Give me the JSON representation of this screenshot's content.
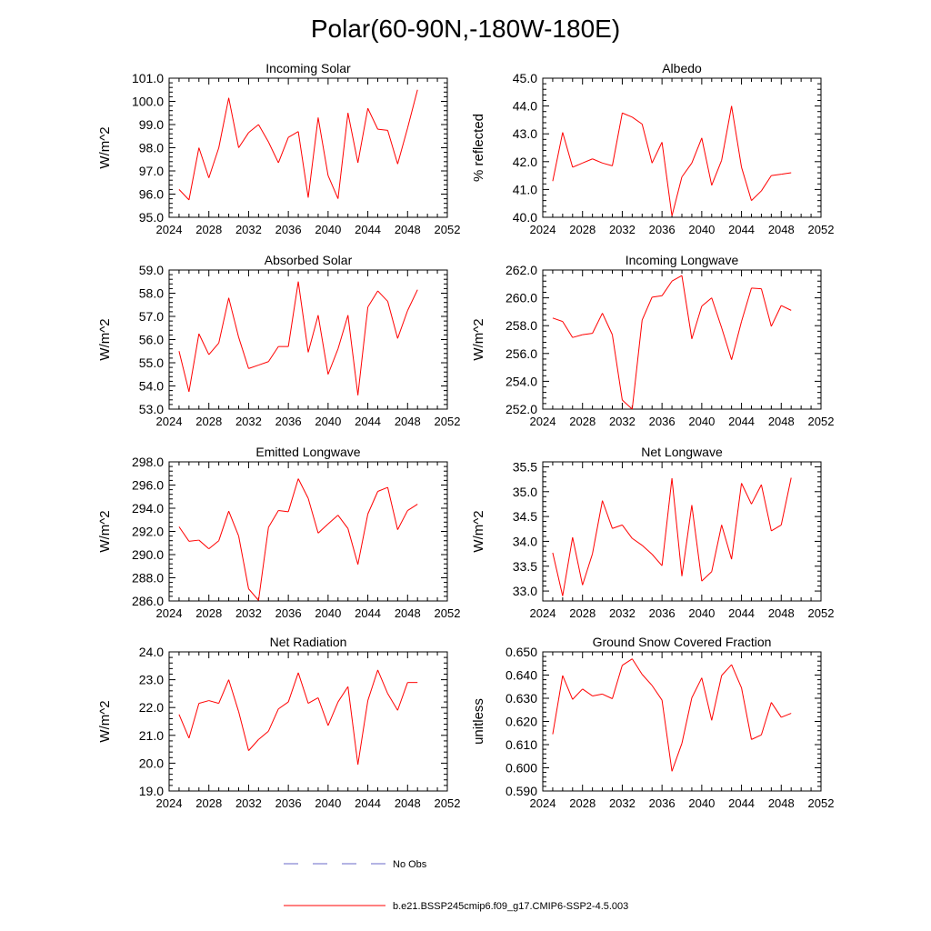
{
  "figure": {
    "title": "Polar(60-90N,-180W-180E)"
  },
  "legend": {
    "obs_label": "No Obs",
    "obs_color": "#6a6ac8",
    "model_label": "b.e21.BSSP245cmip6.f09_g17.CMIP6-SSP2-4.5.003",
    "model_color": "#ff0000"
  },
  "x_axis": {
    "range": [
      2024,
      2052
    ],
    "ticks": [
      "2024",
      "2028",
      "2032",
      "2036",
      "2040",
      "2044",
      "2048",
      "2052"
    ]
  },
  "chart_data": [
    {
      "type": "line",
      "title": "Incoming Solar",
      "xlabel": "",
      "ylabel": "W/m^2",
      "ylim": [
        95.0,
        101.0
      ],
      "yticks": [
        "95.0",
        "96.0",
        "97.0",
        "98.0",
        "99.0",
        "100.0",
        "101.0"
      ],
      "x": [
        2025,
        2026,
        2027,
        2028,
        2029,
        2030,
        2031,
        2032,
        2033,
        2034,
        2035,
        2036,
        2037,
        2038,
        2039,
        2040,
        2041,
        2042,
        2043,
        2044,
        2045,
        2046,
        2047,
        2048,
        2049
      ],
      "series": [
        {
          "name": "b.e21.BSSP245cmip6.f09_g17.CMIP6-SSP2-4.5.003",
          "values": [
            96.2,
            95.75,
            98.0,
            96.7,
            98.0,
            100.15,
            98.0,
            98.65,
            99.0,
            98.25,
            97.35,
            98.45,
            98.7,
            95.85,
            99.3,
            96.8,
            95.8,
            99.5,
            97.35,
            99.7,
            98.8,
            98.75,
            97.3,
            98.85,
            100.5
          ]
        }
      ]
    },
    {
      "type": "line",
      "title": "Albedo",
      "xlabel": "",
      "ylabel": "% reflected",
      "ylim": [
        40.0,
        45.0
      ],
      "yticks": [
        "40.0",
        "41.0",
        "42.0",
        "43.0",
        "44.0",
        "45.0"
      ],
      "x": [
        2025,
        2026,
        2027,
        2028,
        2029,
        2030,
        2031,
        2032,
        2033,
        2034,
        2035,
        2036,
        2037,
        2038,
        2039,
        2040,
        2041,
        2042,
        2043,
        2044,
        2045,
        2046,
        2047,
        2048,
        2049
      ],
      "series": [
        {
          "name": "b.e21.BSSP245cmip6.f09_g17.CMIP6-SSP2-4.5.003",
          "values": [
            41.3,
            43.05,
            41.8,
            41.95,
            42.1,
            41.95,
            41.85,
            43.75,
            43.6,
            43.35,
            41.95,
            42.7,
            40.05,
            41.45,
            41.95,
            42.85,
            41.15,
            42.05,
            44.0,
            41.8,
            40.6,
            40.95,
            41.5,
            41.55,
            41.6
          ]
        }
      ]
    },
    {
      "type": "line",
      "title": "Absorbed Solar",
      "xlabel": "",
      "ylabel": "W/m^2",
      "ylim": [
        53.0,
        59.0
      ],
      "yticks": [
        "53.0",
        "54.0",
        "55.0",
        "56.0",
        "57.0",
        "58.0",
        "59.0"
      ],
      "x": [
        2025,
        2026,
        2027,
        2028,
        2029,
        2030,
        2031,
        2032,
        2033,
        2034,
        2035,
        2036,
        2037,
        2038,
        2039,
        2040,
        2041,
        2042,
        2043,
        2044,
        2045,
        2046,
        2047,
        2048,
        2049
      ],
      "series": [
        {
          "name": "b.e21.BSSP245cmip6.f09_g17.CMIP6-SSP2-4.5.003",
          "values": [
            55.5,
            53.75,
            56.25,
            55.35,
            55.85,
            57.8,
            56.1,
            54.75,
            54.9,
            55.05,
            55.7,
            55.7,
            58.5,
            55.45,
            57.05,
            54.5,
            55.6,
            57.05,
            53.6,
            57.4,
            58.1,
            57.65,
            56.05,
            57.25,
            58.15
          ]
        }
      ]
    },
    {
      "type": "line",
      "title": "Incoming Longwave",
      "xlabel": "",
      "ylabel": "W/m^2",
      "ylim": [
        252.0,
        262.0
      ],
      "yticks": [
        "252.0",
        "254.0",
        "256.0",
        "258.0",
        "260.0",
        "262.0"
      ],
      "x": [
        2025,
        2026,
        2027,
        2028,
        2029,
        2030,
        2031,
        2032,
        2033,
        2034,
        2035,
        2036,
        2037,
        2038,
        2039,
        2040,
        2041,
        2042,
        2043,
        2044,
        2045,
        2046,
        2047,
        2048,
        2049
      ],
      "series": [
        {
          "name": "b.e21.BSSP245cmip6.f09_g17.CMIP6-SSP2-4.5.003",
          "values": [
            258.55,
            258.3,
            257.15,
            257.35,
            257.45,
            258.9,
            257.35,
            252.65,
            252.0,
            258.4,
            260.05,
            260.15,
            261.2,
            261.6,
            257.05,
            259.4,
            260.0,
            257.85,
            255.55,
            258.3,
            260.7,
            260.65,
            257.95,
            259.45,
            259.1
          ]
        }
      ]
    },
    {
      "type": "line",
      "title": "Emitted Longwave",
      "xlabel": "",
      "ylabel": "W/m^2",
      "ylim": [
        286.0,
        298.0
      ],
      "yticks": [
        "286.0",
        "288.0",
        "290.0",
        "292.0",
        "294.0",
        "296.0",
        "298.0"
      ],
      "x": [
        2025,
        2026,
        2027,
        2028,
        2029,
        2030,
        2031,
        2032,
        2033,
        2034,
        2035,
        2036,
        2037,
        2038,
        2039,
        2040,
        2041,
        2042,
        2043,
        2044,
        2045,
        2046,
        2047,
        2048,
        2049
      ],
      "series": [
        {
          "name": "b.e21.BSSP245cmip6.f09_g17.CMIP6-SSP2-4.5.003",
          "values": [
            292.4,
            291.15,
            291.25,
            290.5,
            291.2,
            293.75,
            291.6,
            287.05,
            286.05,
            292.35,
            293.8,
            293.7,
            296.55,
            294.85,
            291.85,
            292.65,
            293.4,
            292.25,
            289.15,
            293.5,
            295.45,
            295.8,
            292.15,
            293.8,
            294.35
          ]
        }
      ]
    },
    {
      "type": "line",
      "title": "Net Longwave",
      "xlabel": "",
      "ylabel": "W/m^2",
      "ylim": [
        32.8,
        35.6
      ],
      "yticks": [
        "33.0",
        "33.5",
        "34.0",
        "34.5",
        "35.0",
        "35.5"
      ],
      "ytickvalues": [
        33.0,
        33.5,
        34.0,
        34.5,
        35.0,
        35.5
      ],
      "x": [
        2025,
        2026,
        2027,
        2028,
        2029,
        2030,
        2031,
        2032,
        2033,
        2034,
        2035,
        2036,
        2037,
        2038,
        2039,
        2040,
        2041,
        2042,
        2043,
        2044,
        2045,
        2046,
        2047,
        2048,
        2049
      ],
      "series": [
        {
          "name": "b.e21.BSSP245cmip6.f09_g17.CMIP6-SSP2-4.5.003",
          "values": [
            33.77,
            32.9,
            34.08,
            33.12,
            33.75,
            34.82,
            34.26,
            34.33,
            34.06,
            33.92,
            33.74,
            33.51,
            35.27,
            33.3,
            34.73,
            33.2,
            33.39,
            34.33,
            33.64,
            35.17,
            34.75,
            35.14,
            34.21,
            34.33,
            35.28
          ]
        }
      ]
    },
    {
      "type": "line",
      "title": "Net Radiation",
      "xlabel": "",
      "ylabel": "W/m^2",
      "ylim": [
        19.0,
        24.0
      ],
      "yticks": [
        "19.0",
        "20.0",
        "21.0",
        "22.0",
        "23.0",
        "24.0"
      ],
      "x": [
        2025,
        2026,
        2027,
        2028,
        2029,
        2030,
        2031,
        2032,
        2033,
        2034,
        2035,
        2036,
        2037,
        2038,
        2039,
        2040,
        2041,
        2042,
        2043,
        2044,
        2045,
        2046,
        2047,
        2048,
        2049
      ],
      "series": [
        {
          "name": "b.e21.BSSP245cmip6.f09_g17.CMIP6-SSP2-4.5.003",
          "values": [
            21.75,
            20.9,
            22.15,
            22.25,
            22.15,
            23.0,
            21.85,
            20.45,
            20.85,
            21.15,
            21.95,
            22.2,
            23.25,
            22.15,
            22.35,
            21.35,
            22.2,
            22.75,
            19.95,
            22.25,
            23.35,
            22.5,
            21.9,
            22.9,
            22.9
          ]
        }
      ]
    },
    {
      "type": "line",
      "title": "Ground Snow Covered Fraction",
      "xlabel": "",
      "ylabel": "unitless",
      "ylim": [
        0.59,
        0.65
      ],
      "yticks": [
        "0.590",
        "0.600",
        "0.610",
        "0.620",
        "0.630",
        "0.640",
        "0.650"
      ],
      "x": [
        2025,
        2026,
        2027,
        2028,
        2029,
        2030,
        2031,
        2032,
        2033,
        2034,
        2035,
        2036,
        2037,
        2038,
        2039,
        2040,
        2041,
        2042,
        2043,
        2044,
        2045,
        2046,
        2047,
        2048,
        2049
      ],
      "series": [
        {
          "name": "b.e21.BSSP245cmip6.f09_g17.CMIP6-SSP2-4.5.003",
          "values": [
            0.6145,
            0.6398,
            0.6295,
            0.634,
            0.631,
            0.6318,
            0.6298,
            0.6442,
            0.647,
            0.6403,
            0.6355,
            0.6292,
            0.5985,
            0.6105,
            0.6302,
            0.6388,
            0.6205,
            0.6398,
            0.6445,
            0.6345,
            0.6122,
            0.6142,
            0.6282,
            0.6218,
            0.6235
          ]
        }
      ]
    }
  ]
}
